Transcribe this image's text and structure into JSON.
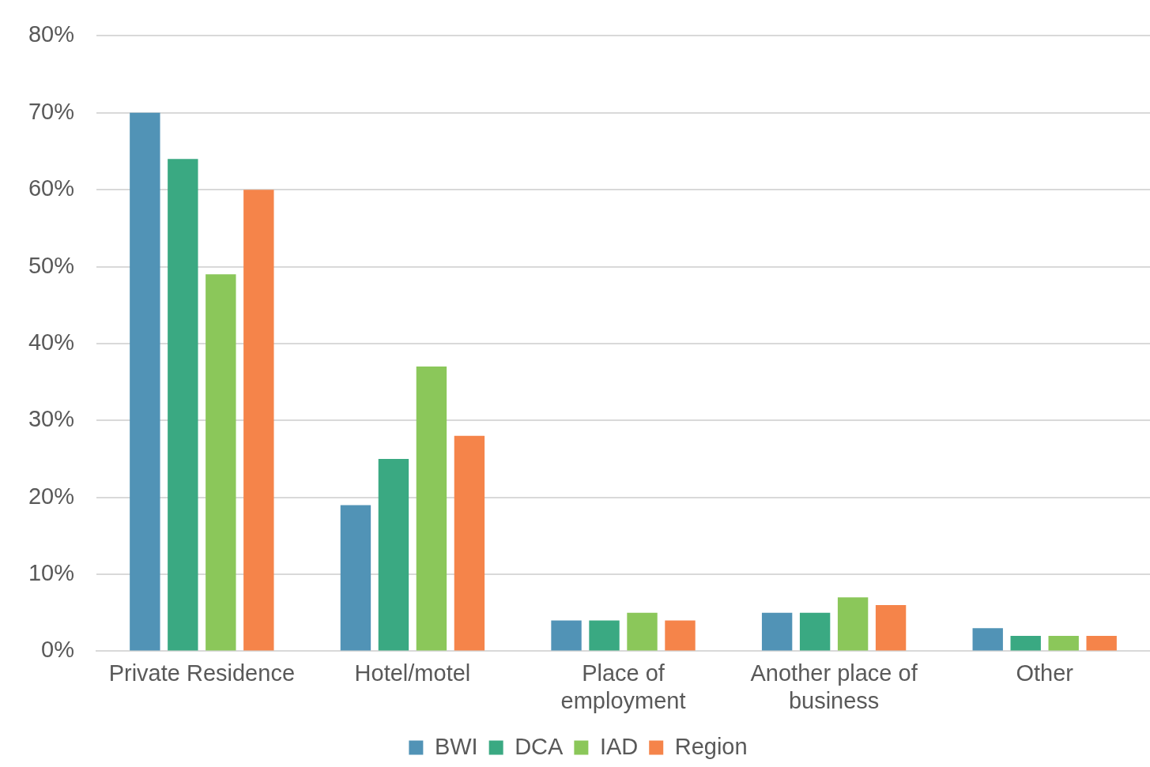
{
  "chart_data": {
    "type": "bar",
    "categories": [
      "Private Residence",
      "Hotel/motel",
      "Place of employment",
      "Another place of business",
      "Other"
    ],
    "series": [
      {
        "name": "BWI",
        "color": "#5193b6",
        "values": [
          70,
          19,
          4,
          5,
          3
        ]
      },
      {
        "name": "DCA",
        "color": "#3aa982",
        "values": [
          64,
          25,
          4,
          5,
          2
        ]
      },
      {
        "name": "IAD",
        "color": "#8bc75a",
        "values": [
          49,
          37,
          5,
          7,
          2
        ]
      },
      {
        "name": "Region",
        "color": "#f5844a",
        "values": [
          60,
          28,
          4,
          6,
          2
        ]
      }
    ],
    "ylim": [
      0,
      80
    ],
    "yticks": [
      {
        "value": 0,
        "label": "0%"
      },
      {
        "value": 10,
        "label": "10%"
      },
      {
        "value": 20,
        "label": "20%"
      },
      {
        "value": 30,
        "label": "30%"
      },
      {
        "value": 40,
        "label": "40%"
      },
      {
        "value": 50,
        "label": "50%"
      },
      {
        "value": 60,
        "label": "60%"
      },
      {
        "value": 70,
        "label": "70%"
      },
      {
        "value": 80,
        "label": "80%"
      }
    ],
    "grid": "y",
    "legend": "bottom"
  }
}
